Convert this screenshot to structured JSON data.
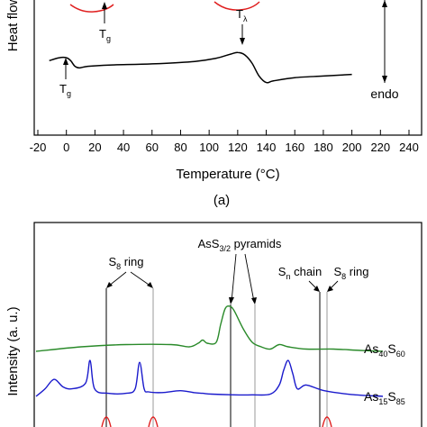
{
  "panel_a": {
    "ylabel": "Heat flow",
    "xlabel": "Temperature (°C)",
    "caption": "(a)",
    "right_label": "endo",
    "annot_tg": "T",
    "annot_tg_sub": "g",
    "annot_tlambda": "T",
    "annot_tlambda_sub": "λ"
  },
  "panel_b": {
    "ylabel": "Intensity (a. u.)",
    "annot_s8": "S",
    "annot_s8_sub": "8",
    "annot_s8_tail": " ring",
    "annot_ass": "AsS",
    "annot_ass_sub": "3/2",
    "annot_ass_tail": " pyramids",
    "annot_sn": "S",
    "annot_sn_sub": "n",
    "annot_sn_tail": " chain",
    "annot_s8b": "S",
    "annot_s8b_sub": "8",
    "annot_s8b_tail": " ring",
    "label_as40": "As",
    "label_as40_sub1": "40",
    "label_as40_mid": "S",
    "label_as40_sub2": "60",
    "label_as15": "As",
    "label_as15_sub1": "15",
    "label_as15_mid": "S",
    "label_as15_sub2": "85"
  },
  "chart_data": [
    {
      "type": "line",
      "panel": "a",
      "xlabel": "Temperature (°C)",
      "ylabel": "Heat flow",
      "xlim": [
        -20,
        240
      ],
      "xticks": [
        -20,
        0,
        20,
        40,
        60,
        80,
        100,
        120,
        140,
        160,
        180,
        200,
        220,
        240
      ],
      "series": [
        {
          "color": "#000000",
          "x": [
            -12,
            -5,
            0,
            3,
            6,
            9,
            15,
            30,
            60,
            90,
            105,
            115,
            120,
            125,
            130,
            135,
            140,
            145,
            160,
            180,
            200
          ],
          "y": [
            0.15,
            0.33,
            0.33,
            0.15,
            -0.2,
            -0.3,
            -0.2,
            -0.12,
            -0.05,
            0.1,
            0.3,
            0.55,
            0.65,
            0.5,
            0.0,
            -0.8,
            -1.2,
            -1.1,
            -0.9,
            -0.8,
            -0.7
          ]
        }
      ]
    },
    {
      "type": "line",
      "panel": "b",
      "ylabel": "Intensity (a. u.)",
      "series": [
        {
          "name": "As40S60",
          "color": "#2a8a2a",
          "x": [
            0,
            50,
            100,
            150,
            170,
            180,
            185,
            190,
            200,
            205,
            210,
            215,
            220,
            230,
            240,
            250,
            260,
            270,
            280,
            300,
            330,
            360,
            385
          ],
          "y": [
            0.0,
            0.1,
            0.15,
            0.15,
            0.1,
            0.18,
            0.25,
            0.18,
            0.2,
            0.6,
            0.95,
            1.0,
            0.9,
            0.5,
            0.2,
            0.1,
            0.05,
            0.15,
            0.1,
            0.05,
            0.05,
            0.02,
            0.0
          ]
        },
        {
          "name": "As15S85",
          "color": "#1a1acc",
          "x": [
            0,
            10,
            20,
            30,
            40,
            55,
            60,
            65,
            80,
            100,
            110,
            115,
            120,
            125,
            140,
            160,
            175,
            185,
            195,
            220,
            240,
            260,
            270,
            275,
            280,
            285,
            290,
            300,
            320,
            350,
            385
          ],
          "y": [
            0.0,
            0.2,
            0.45,
            0.25,
            0.2,
            0.35,
            0.95,
            0.2,
            0.08,
            0.08,
            0.2,
            0.9,
            0.2,
            0.12,
            0.1,
            0.15,
            0.1,
            0.08,
            0.06,
            0.04,
            0.04,
            0.06,
            0.3,
            0.7,
            0.95,
            0.6,
            0.2,
            0.3,
            0.15,
            0.05,
            0.0
          ]
        }
      ]
    }
  ]
}
